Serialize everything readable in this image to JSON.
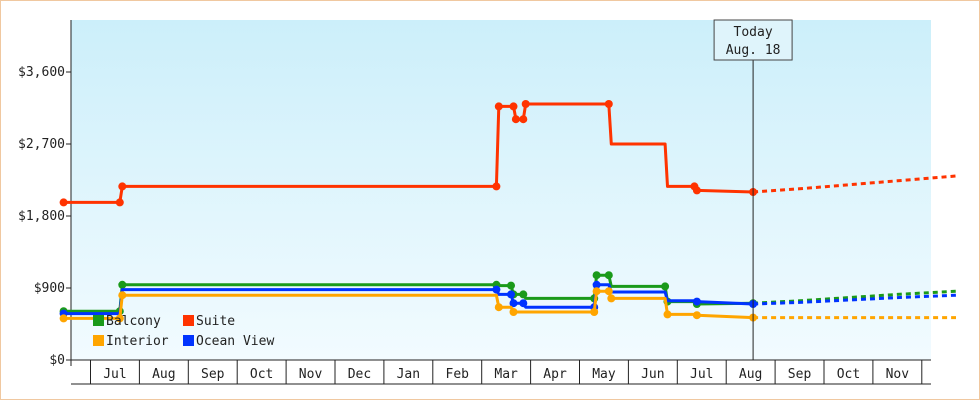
{
  "chart_data": {
    "type": "line",
    "title": "",
    "xlabel": "",
    "ylabel": "",
    "ylim": [
      0,
      4250
    ],
    "y_ticks": [
      "$0",
      "$900",
      "$1,800",
      "$2,700",
      "$3,600"
    ],
    "y_tick_values": [
      0,
      900,
      1800,
      2700,
      3600
    ],
    "x_ticks": [
      "Jul",
      "Aug",
      "Sep",
      "Oct",
      "Nov",
      "Dec",
      "Jan",
      "Feb",
      "Mar",
      "Apr",
      "May",
      "Jun",
      "Jul",
      "Aug",
      "Sep",
      "Oct",
      "Nov"
    ],
    "x_range_months": [
      0,
      17.7
    ],
    "grid": false,
    "legend_position": "bottom-left",
    "today_marker": {
      "line1": "Today",
      "line2": "Aug. 18",
      "x": 13.55
    },
    "colors": {
      "Balcony": "#1a9a1a",
      "Suite": "#ff3300",
      "Interior": "#ffa500",
      "Ocean View": "#0033ff",
      "frame": "#f0c8a0",
      "bg_top": "#cceffa",
      "bg_bottom": "#f2fbff"
    },
    "legend_rows": [
      [
        "Balcony",
        "Suite"
      ],
      [
        "Interior",
        "Ocean View"
      ]
    ],
    "series": [
      {
        "name": "Suite",
        "values": [
          [
            -0.55,
            1970
          ],
          [
            0.6,
            1970
          ],
          [
            0.65,
            2170
          ],
          [
            8.3,
            2170
          ],
          [
            8.35,
            3170
          ],
          [
            8.65,
            3170
          ],
          [
            8.7,
            3010
          ],
          [
            8.85,
            3010
          ],
          [
            8.9,
            3200
          ],
          [
            10.6,
            3200
          ],
          [
            10.65,
            2700
          ],
          [
            11.75,
            2700
          ],
          [
            11.8,
            2170
          ],
          [
            12.35,
            2170
          ],
          [
            12.4,
            2120
          ],
          [
            13.55,
            2100
          ]
        ],
        "markers": [
          [
            -0.55,
            1970
          ],
          [
            0.6,
            1970
          ],
          [
            0.65,
            2170
          ],
          [
            8.3,
            2170
          ],
          [
            8.35,
            3170
          ],
          [
            8.65,
            3170
          ],
          [
            8.7,
            3010
          ],
          [
            8.85,
            3010
          ],
          [
            8.9,
            3200
          ],
          [
            10.6,
            3200
          ],
          [
            12.35,
            2170
          ],
          [
            12.4,
            2120
          ],
          [
            13.55,
            2100
          ]
        ],
        "forecast": [
          [
            13.55,
            2100
          ],
          [
            14.5,
            2140
          ],
          [
            15.5,
            2190
          ],
          [
            16.5,
            2240
          ],
          [
            17.7,
            2300
          ]
        ]
      },
      {
        "name": "Balcony",
        "values": [
          [
            -0.55,
            610
          ],
          [
            0.6,
            610
          ],
          [
            0.65,
            940
          ],
          [
            8.3,
            940
          ],
          [
            8.35,
            930
          ],
          [
            8.6,
            930
          ],
          [
            8.65,
            820
          ],
          [
            8.85,
            820
          ],
          [
            8.9,
            770
          ],
          [
            10.3,
            770
          ],
          [
            10.35,
            1060
          ],
          [
            10.6,
            1060
          ],
          [
            10.65,
            920
          ],
          [
            11.75,
            920
          ],
          [
            11.8,
            730
          ],
          [
            12.35,
            730
          ],
          [
            12.4,
            700
          ],
          [
            13.55,
            710
          ]
        ],
        "markers": [
          [
            -0.55,
            610
          ],
          [
            0.6,
            610
          ],
          [
            0.65,
            940
          ],
          [
            8.3,
            940
          ],
          [
            8.6,
            930
          ],
          [
            8.65,
            820
          ],
          [
            8.85,
            820
          ],
          [
            10.3,
            770
          ],
          [
            10.35,
            1060
          ],
          [
            10.6,
            1060
          ],
          [
            11.75,
            920
          ],
          [
            11.8,
            730
          ],
          [
            12.4,
            700
          ],
          [
            13.55,
            710
          ]
        ],
        "forecast": [
          [
            13.55,
            710
          ],
          [
            14.5,
            740
          ],
          [
            15.5,
            780
          ],
          [
            16.5,
            820
          ],
          [
            17.7,
            860
          ]
        ]
      },
      {
        "name": "Ocean View",
        "values": [
          [
            -0.55,
            580
          ],
          [
            0.6,
            580
          ],
          [
            0.65,
            880
          ],
          [
            8.3,
            880
          ],
          [
            8.35,
            820
          ],
          [
            8.6,
            820
          ],
          [
            8.65,
            710
          ],
          [
            8.85,
            710
          ],
          [
            8.9,
            660
          ],
          [
            10.3,
            660
          ],
          [
            10.35,
            940
          ],
          [
            10.6,
            940
          ],
          [
            10.65,
            850
          ],
          [
            11.75,
            850
          ],
          [
            11.8,
            740
          ],
          [
            12.35,
            740
          ],
          [
            12.4,
            730
          ],
          [
            13.55,
            700
          ]
        ],
        "markers": [
          [
            -0.55,
            580
          ],
          [
            8.3,
            880
          ],
          [
            8.6,
            820
          ],
          [
            8.65,
            710
          ],
          [
            8.85,
            710
          ],
          [
            10.3,
            660
          ],
          [
            10.35,
            940
          ],
          [
            12.4,
            730
          ],
          [
            13.55,
            700
          ]
        ],
        "forecast": [
          [
            13.55,
            700
          ],
          [
            14.5,
            720
          ],
          [
            15.5,
            750
          ],
          [
            16.5,
            780
          ],
          [
            17.7,
            810
          ]
        ]
      },
      {
        "name": "Interior",
        "values": [
          [
            -0.55,
            520
          ],
          [
            0.6,
            520
          ],
          [
            0.65,
            810
          ],
          [
            8.3,
            810
          ],
          [
            8.35,
            660
          ],
          [
            8.6,
            660
          ],
          [
            8.65,
            600
          ],
          [
            10.3,
            600
          ],
          [
            10.35,
            860
          ],
          [
            10.6,
            860
          ],
          [
            10.65,
            770
          ],
          [
            11.75,
            770
          ],
          [
            11.8,
            570
          ],
          [
            12.35,
            570
          ],
          [
            12.4,
            560
          ],
          [
            13.55,
            530
          ]
        ],
        "markers": [
          [
            -0.55,
            520
          ],
          [
            0.6,
            520
          ],
          [
            0.65,
            810
          ],
          [
            8.35,
            660
          ],
          [
            8.65,
            600
          ],
          [
            10.3,
            600
          ],
          [
            10.35,
            860
          ],
          [
            10.6,
            860
          ],
          [
            10.65,
            770
          ],
          [
            11.8,
            570
          ],
          [
            12.4,
            560
          ],
          [
            13.55,
            530
          ]
        ],
        "forecast": [
          [
            13.55,
            530
          ],
          [
            14.5,
            530
          ],
          [
            15.5,
            530
          ],
          [
            16.5,
            530
          ],
          [
            17.7,
            530
          ]
        ]
      }
    ]
  }
}
